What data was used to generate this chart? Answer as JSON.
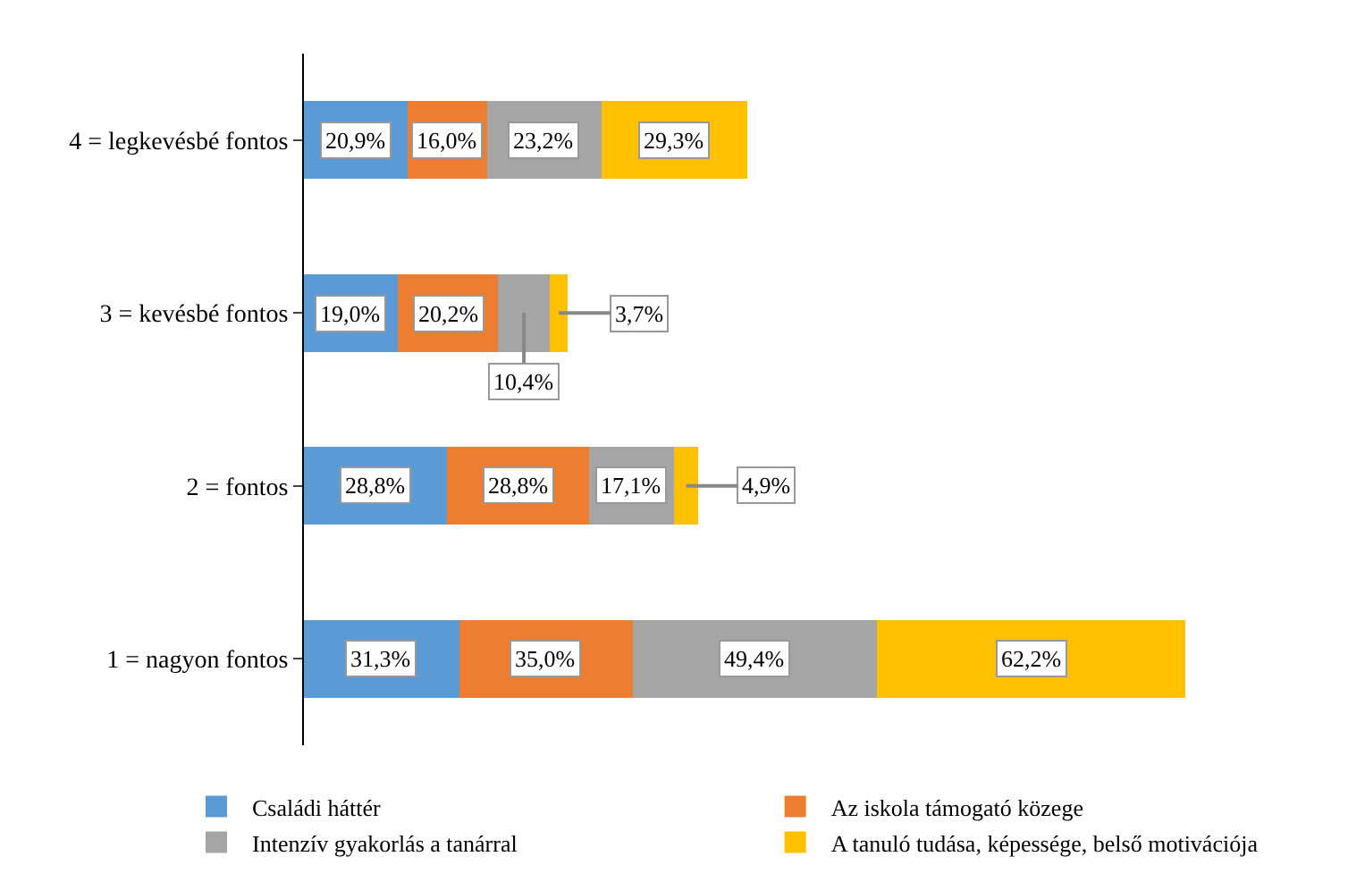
{
  "chart_data": {
    "type": "bar",
    "orientation": "horizontal",
    "stacked": true,
    "categories": [
      "4 = legkevésbé fontos",
      "3 = kevésbé fontos",
      "2 = fontos",
      "1 = nagyon fontos"
    ],
    "series": [
      {
        "name": "Családi háttér",
        "color": "#5b9bd5",
        "values": [
          20.9,
          19.0,
          28.8,
          31.3
        ],
        "value_labels": [
          "20,9%",
          "19,0%",
          "28,8%",
          "31,3%"
        ]
      },
      {
        "name": "Az iskola támogató közege",
        "color": "#ed7d31",
        "values": [
          16.0,
          20.2,
          28.8,
          35.0
        ],
        "value_labels": [
          "16,0%",
          "20,2%",
          "28,8%",
          "35,0%"
        ]
      },
      {
        "name": "Intenzív gyakorlás a tanárral",
        "color": "#a5a5a5",
        "values": [
          23.2,
          10.4,
          17.1,
          49.4
        ],
        "value_labels": [
          "23,2%",
          "10,4%",
          "17,1%",
          "49,4%"
        ]
      },
      {
        "name": "A tanuló tudása, képessége, belső motivációja",
        "color": "#ffc000",
        "values": [
          29.3,
          3.7,
          4.9,
          62.2
        ],
        "value_labels": [
          "29,3%",
          "3,7%",
          "4,9%",
          "62,2%"
        ]
      }
    ],
    "tick_labels": "y",
    "legend": "bottom"
  }
}
